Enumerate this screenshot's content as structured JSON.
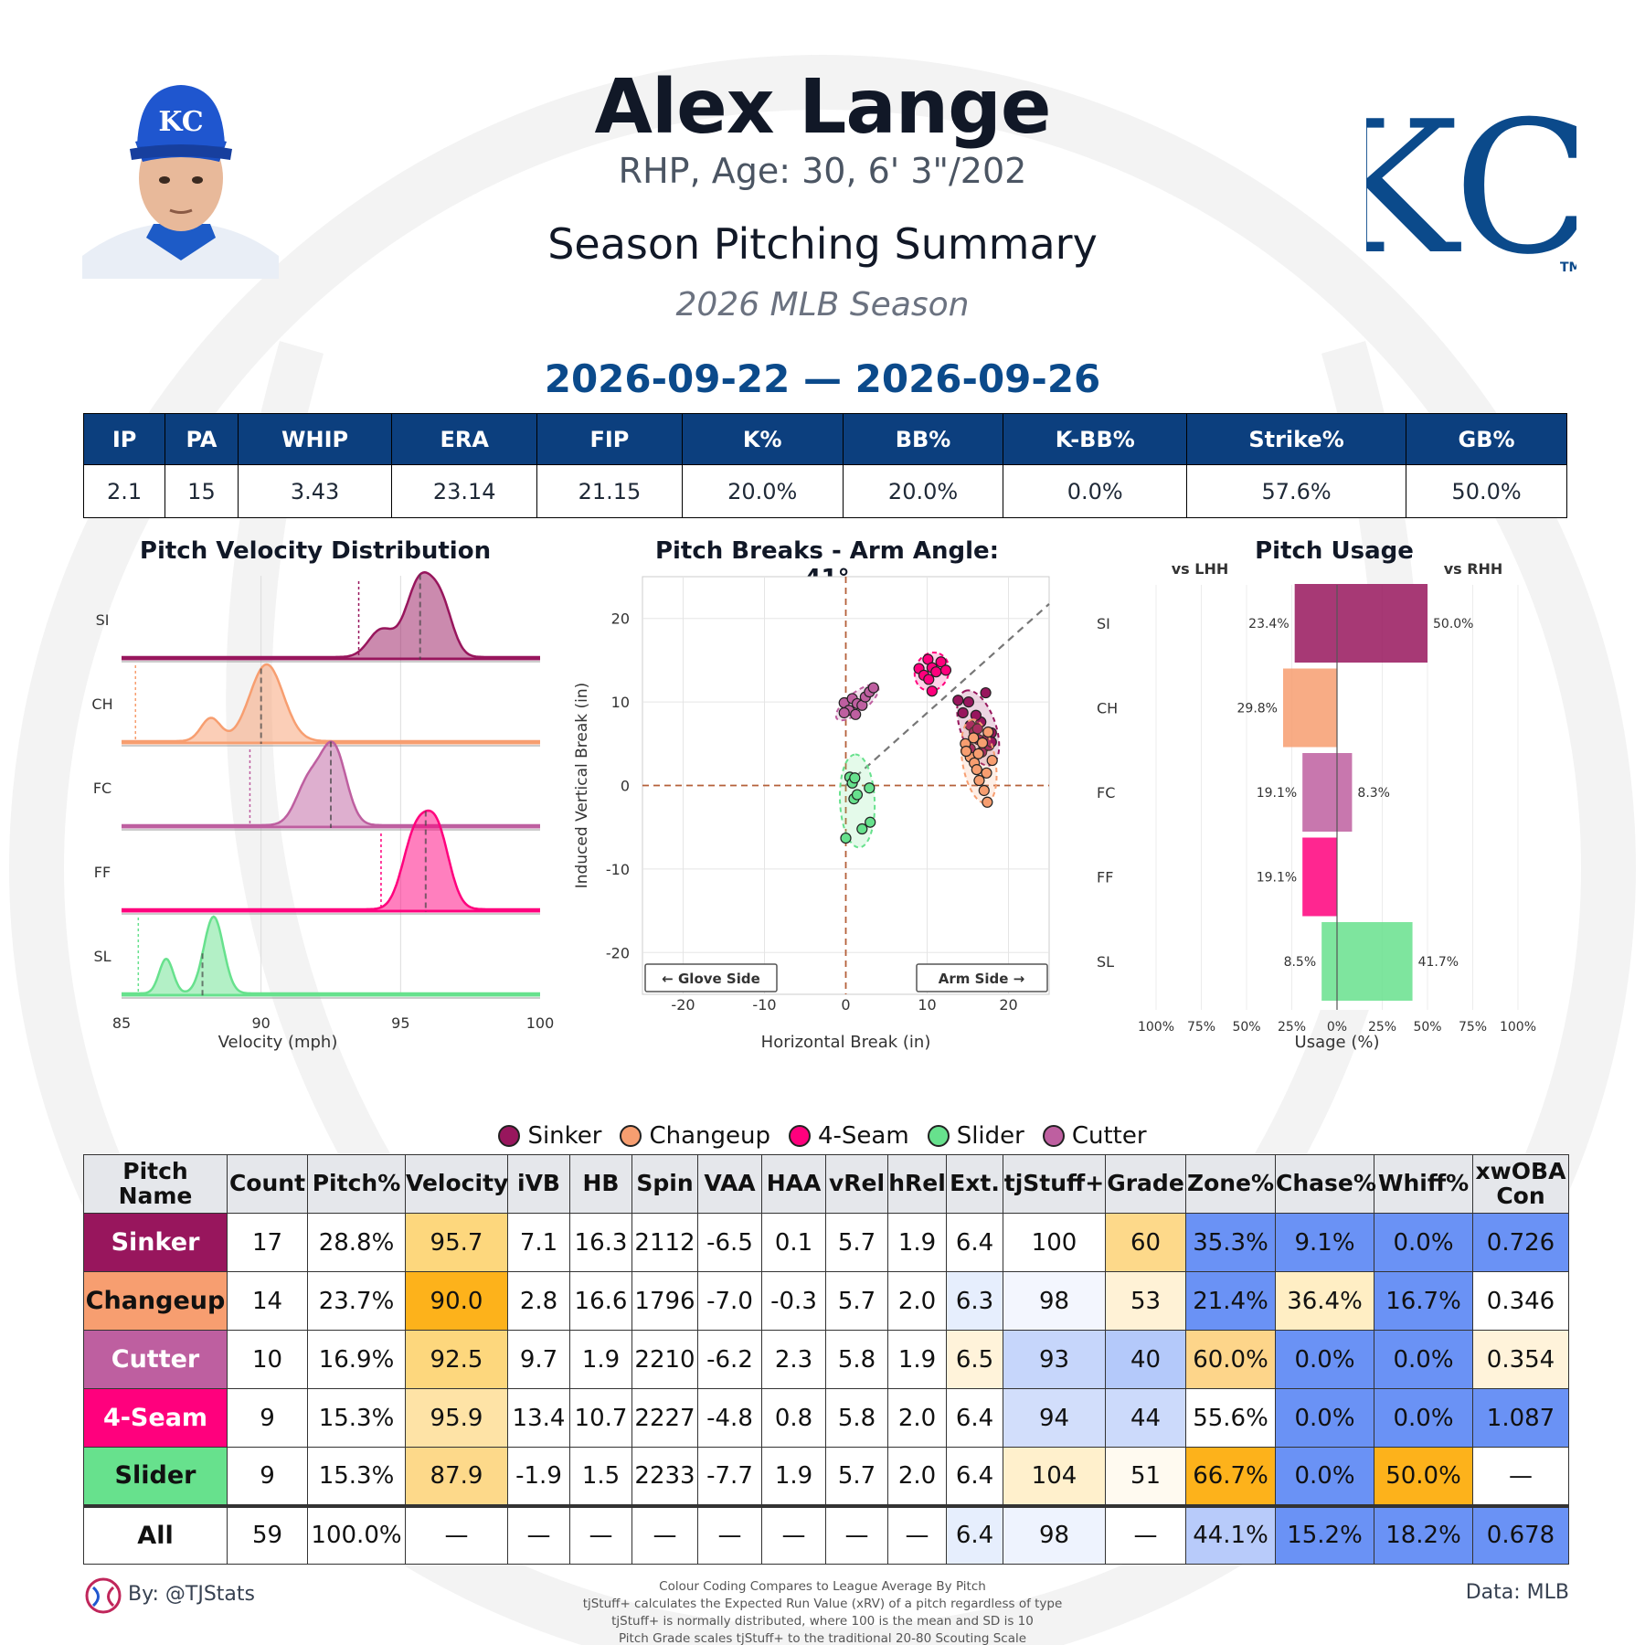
{
  "header": {
    "player_name": "Alex Lange",
    "bio": "RHP, Age: 30, 6' 3\"/202",
    "title": "Season Pitching Summary",
    "season": "2026 MLB Season",
    "date_range": "2026-09-22 — 2026-09-26",
    "team_logo_text": "KC",
    "team_logo_tm": "TM",
    "cap_logo_text": "KC"
  },
  "summary_stats": {
    "headers": [
      "IP",
      "PA",
      "WHIP",
      "ERA",
      "FIP",
      "K%",
      "BB%",
      "K-BB%",
      "Strike%",
      "GB%"
    ],
    "values": [
      "2.1",
      "15",
      "3.43",
      "23.14",
      "21.15",
      "20.0%",
      "20.0%",
      "0.0%",
      "57.6%",
      "50.0%"
    ]
  },
  "colors": {
    "Sinker": "#98165d",
    "Changeup": "#f79e70",
    "Cutter": "#be5fa0",
    "4-Seam": "#ff007d",
    "Slider": "#67e18d",
    "header_blue": "#0c3f7e"
  },
  "chart_data": [
    {
      "type": "area",
      "title": "Pitch Velocity Distribution",
      "xlabel": "Velocity (mph)",
      "ylabel": "",
      "xlim": [
        85,
        100
      ],
      "xticks": [
        "85",
        "90",
        "95",
        "100"
      ],
      "grid": true,
      "series": [
        {
          "name": "SI",
          "pitch": "Sinker",
          "mean": 95.7,
          "league_avg": 93.5,
          "peaks": [
            [
              94.3,
              0.35,
              0.45
            ],
            [
              95.7,
              1.0,
              0.5
            ],
            [
              96.5,
              0.55,
              0.4
            ]
          ]
        },
        {
          "name": "CH",
          "pitch": "Changeup",
          "mean": 90.0,
          "league_avg": 85.5,
          "peaks": [
            [
              88.2,
              0.3,
              0.35
            ],
            [
              90.2,
              1.0,
              0.6
            ]
          ]
        },
        {
          "name": "FC",
          "pitch": "Cutter",
          "mean": 92.5,
          "league_avg": 89.6,
          "peaks": [
            [
              91.7,
              0.55,
              0.45
            ],
            [
              92.6,
              1.0,
              0.45
            ]
          ]
        },
        {
          "name": "FF",
          "pitch": "4-Seam",
          "mean": 95.9,
          "league_avg": 94.3,
          "peaks": [
            [
              95.5,
              0.9,
              0.45
            ],
            [
              96.3,
              1.0,
              0.45
            ]
          ]
        },
        {
          "name": "SL",
          "pitch": "Slider",
          "mean": 87.9,
          "league_avg": 85.6,
          "peaks": [
            [
              86.6,
              0.45,
              0.25
            ],
            [
              88.3,
              1.0,
              0.35
            ]
          ]
        }
      ]
    },
    {
      "type": "scatter",
      "title": "Pitch Breaks - Arm Angle: 41°",
      "xlabel": "Horizontal Break (in)",
      "ylabel": "Induced Vertical Break (in)",
      "xlim": [
        -25,
        25
      ],
      "ylim": [
        -25,
        25
      ],
      "xticks": [
        "-20",
        "-10",
        "0",
        "10",
        "20"
      ],
      "yticks": [
        "20",
        "10",
        "0",
        "-10",
        "-20"
      ],
      "arm_angle_deg": 41,
      "glove_side_label": "← Glove Side",
      "arm_side_label": "Arm Side →",
      "grid": true,
      "series": [
        {
          "name": "Cutter",
          "points": [
            [
              -0.2,
              9.9
            ],
            [
              0.4,
              9.0
            ],
            [
              0.8,
              10.4
            ],
            [
              1.2,
              8.5
            ],
            [
              1.4,
              9.8
            ],
            [
              2.0,
              9.6
            ],
            [
              2.4,
              10.6
            ],
            [
              2.9,
              11.2
            ],
            [
              3.4,
              11.7
            ],
            [
              -0.2,
              8.7
            ]
          ]
        },
        {
          "name": "4-Seam",
          "points": [
            [
              9.0,
              14.0
            ],
            [
              9.6,
              13.2
            ],
            [
              10.1,
              15.1
            ],
            [
              10.6,
              14.1
            ],
            [
              10.2,
              12.7
            ],
            [
              11.1,
              13.6
            ],
            [
              11.7,
              14.8
            ],
            [
              12.3,
              13.8
            ],
            [
              10.6,
              11.3
            ]
          ]
        },
        {
          "name": "Sinker",
          "points": [
            [
              13.8,
              10.2
            ],
            [
              14.4,
              8.7
            ],
            [
              15.1,
              10.0
            ],
            [
              15.3,
              7.2
            ],
            [
              15.8,
              6.4
            ],
            [
              16.3,
              5.5
            ],
            [
              16.6,
              7.6
            ],
            [
              17.0,
              4.6
            ],
            [
              17.5,
              5.9
            ],
            [
              17.9,
              6.3
            ],
            [
              17.2,
              11.1
            ],
            [
              16.0,
              8.4
            ],
            [
              15.3,
              4.4
            ],
            [
              16.7,
              4.0
            ],
            [
              17.6,
              4.8
            ],
            [
              16.2,
              6.8
            ],
            [
              17.9,
              5.2
            ]
          ]
        },
        {
          "name": "Changeup",
          "points": [
            [
              14.7,
              5.0
            ],
            [
              15.3,
              3.4
            ],
            [
              15.8,
              2.7
            ],
            [
              16.1,
              1.9
            ],
            [
              16.4,
              0.6
            ],
            [
              17.0,
              -0.6
            ],
            [
              17.4,
              -2.0
            ],
            [
              16.3,
              3.8
            ],
            [
              17.3,
              1.5
            ],
            [
              18.0,
              3.0
            ],
            [
              15.7,
              5.7
            ],
            [
              16.8,
              5.1
            ],
            [
              17.5,
              6.4
            ],
            [
              14.8,
              4.1
            ]
          ]
        },
        {
          "name": "Slider",
          "points": [
            [
              0.5,
              1.0
            ],
            [
              0.8,
              0.3
            ],
            [
              1.0,
              -1.6
            ],
            [
              1.4,
              -1.1
            ],
            [
              2.9,
              -0.3
            ],
            [
              0.0,
              -6.3
            ],
            [
              2.0,
              -5.2
            ],
            [
              3.0,
              -4.4
            ],
            [
              1.1,
              0.9
            ]
          ]
        }
      ]
    },
    {
      "type": "bar",
      "title": "Pitch Usage",
      "xlabel": "Usage (%)",
      "left_label": "vs LHH",
      "right_label": "vs RHH",
      "xticks": [
        "100%",
        "75%",
        "50%",
        "25%",
        "0%",
        "25%",
        "50%",
        "75%",
        "100%"
      ],
      "categories": [
        "SI",
        "CH",
        "FC",
        "FF",
        "SL"
      ],
      "series": [
        {
          "name": "vs LHH",
          "values": [
            23.4,
            29.8,
            19.1,
            19.1,
            8.5
          ],
          "labels": [
            "23.4%",
            "29.8%",
            "19.1%",
            "19.1%",
            "8.5%"
          ]
        },
        {
          "name": "vs RHH",
          "values": [
            50.0,
            0.0,
            8.3,
            0.0,
            41.7
          ],
          "labels": [
            "50.0%",
            "",
            "8.3%",
            "",
            "41.7%"
          ]
        }
      ]
    }
  ],
  "legend": [
    {
      "label": "Sinker",
      "color": "#98165d"
    },
    {
      "label": "Changeup",
      "color": "#f79e70"
    },
    {
      "label": "4-Seam",
      "color": "#ff007d"
    },
    {
      "label": "Slider",
      "color": "#67e18d"
    },
    {
      "label": "Cutter",
      "color": "#be5fa0"
    }
  ],
  "pitch_table": {
    "headers": [
      "Pitch Name",
      "Count",
      "Pitch%",
      "Velocity",
      "iVB",
      "HB",
      "Spin",
      "VAA",
      "HAA",
      "vRel",
      "hRel",
      "Ext.",
      "tjStuff+",
      "Grade",
      "Zone%",
      "Chase%",
      "Whiff%",
      "xwOBA Con"
    ],
    "rows": [
      {
        "name": "Sinker",
        "name_bg": "#98165d",
        "name_fg": "#ffffff",
        "cells": [
          "17",
          "28.8%",
          "95.7",
          "7.1",
          "16.3",
          "2112",
          "-6.5",
          "0.1",
          "5.7",
          "1.9",
          "6.4",
          "100",
          "60",
          "35.3%",
          "9.1%",
          "0.0%",
          "0.726"
        ],
        "bgs": [
          "#ffffff",
          "#ffffff",
          "#fdd77d",
          "#ffffff",
          "#ffffff",
          "#ffffff",
          "#ffffff",
          "#ffffff",
          "#ffffff",
          "#ffffff",
          "#ffffff",
          "#ffffff",
          "#fdd98a",
          "#6a92f5",
          "#6a92f5",
          "#6a92f5",
          "#6a92f5"
        ]
      },
      {
        "name": "Changeup",
        "name_bg": "#f79e70",
        "name_fg": "#111111",
        "cells": [
          "14",
          "23.7%",
          "90.0",
          "2.8",
          "16.6",
          "1796",
          "-7.0",
          "-0.3",
          "5.7",
          "2.0",
          "6.3",
          "98",
          "53",
          "21.4%",
          "36.4%",
          "16.7%",
          "0.346"
        ],
        "bgs": [
          "#ffffff",
          "#ffffff",
          "#fdb21b",
          "#ffffff",
          "#ffffff",
          "#ffffff",
          "#ffffff",
          "#ffffff",
          "#ffffff",
          "#ffffff",
          "#e6eefd",
          "#f3f6fe",
          "#fff2d6",
          "#6a92f5",
          "#ffeec4",
          "#6a92f5",
          "#ffffff"
        ]
      },
      {
        "name": "Cutter",
        "name_bg": "#be5fa0",
        "name_fg": "#ffffff",
        "cells": [
          "10",
          "16.9%",
          "92.5",
          "9.7",
          "1.9",
          "2210",
          "-6.2",
          "2.3",
          "5.8",
          "1.9",
          "6.5",
          "93",
          "40",
          "60.0%",
          "0.0%",
          "0.0%",
          "0.354"
        ],
        "bgs": [
          "#ffffff",
          "#ffffff",
          "#fdd77d",
          "#ffffff",
          "#ffffff",
          "#ffffff",
          "#ffffff",
          "#ffffff",
          "#ffffff",
          "#ffffff",
          "#fff3da",
          "#c6d6fb",
          "#b4c9fa",
          "#fdd58a",
          "#6a92f5",
          "#6a92f5",
          "#fff3da"
        ]
      },
      {
        "name": "4-Seam",
        "name_bg": "#ff007d",
        "name_fg": "#ffffff",
        "cells": [
          "9",
          "15.3%",
          "95.9",
          "13.4",
          "10.7",
          "2227",
          "-4.8",
          "0.8",
          "5.8",
          "2.0",
          "6.4",
          "94",
          "44",
          "55.6%",
          "0.0%",
          "0.0%",
          "1.087"
        ],
        "bgs": [
          "#ffffff",
          "#ffffff",
          "#fee3a6",
          "#ffffff",
          "#ffffff",
          "#ffffff",
          "#ffffff",
          "#ffffff",
          "#ffffff",
          "#ffffff",
          "#ffffff",
          "#d2defb",
          "#ccdafb",
          "#ffffff",
          "#6a92f5",
          "#6a92f5",
          "#6a92f5"
        ]
      },
      {
        "name": "Slider",
        "name_bg": "#67e18d",
        "name_fg": "#111111",
        "cells": [
          "9",
          "15.3%",
          "87.9",
          "-1.9",
          "1.5",
          "2233",
          "-7.7",
          "1.9",
          "5.7",
          "2.0",
          "6.4",
          "104",
          "51",
          "66.7%",
          "0.0%",
          "50.0%",
          "—"
        ],
        "bgs": [
          "#ffffff",
          "#ffffff",
          "#fdd98a",
          "#ffffff",
          "#ffffff",
          "#ffffff",
          "#ffffff",
          "#ffffff",
          "#ffffff",
          "#ffffff",
          "#ffffff",
          "#fff0cc",
          "#fffaf0",
          "#fdb21b",
          "#6a92f5",
          "#fdb21b",
          "#ffffff"
        ]
      },
      {
        "name": "All",
        "name_bg": "#ffffff",
        "name_fg": "#111111",
        "total": true,
        "cells": [
          "59",
          "100.0%",
          "—",
          "—",
          "—",
          "—",
          "—",
          "—",
          "—",
          "—",
          "6.4",
          "98",
          "—",
          "44.1%",
          "15.2%",
          "18.2%",
          "0.678"
        ],
        "bgs": [
          "#ffffff",
          "#ffffff",
          "#ffffff",
          "#ffffff",
          "#ffffff",
          "#ffffff",
          "#ffffff",
          "#ffffff",
          "#ffffff",
          "#ffffff",
          "#e6eefd",
          "#eef3fe",
          "#ffffff",
          "#b8cbfa",
          "#6a92f5",
          "#6a92f5",
          "#6a92f5"
        ]
      }
    ]
  },
  "footer": {
    "by": "By: @TJStats",
    "data_source": "Data: MLB",
    "notes": [
      "Colour Coding Compares to League Average By Pitch",
      "tjStuff+ calculates the Expected Run Value (xRV) of a pitch regardless of type",
      "tjStuff+ is normally distributed, where 100 is the mean and SD is 10",
      "Pitch Grade scales tjStuff+ to the traditional 20-80 Scouting Scale"
    ]
  }
}
